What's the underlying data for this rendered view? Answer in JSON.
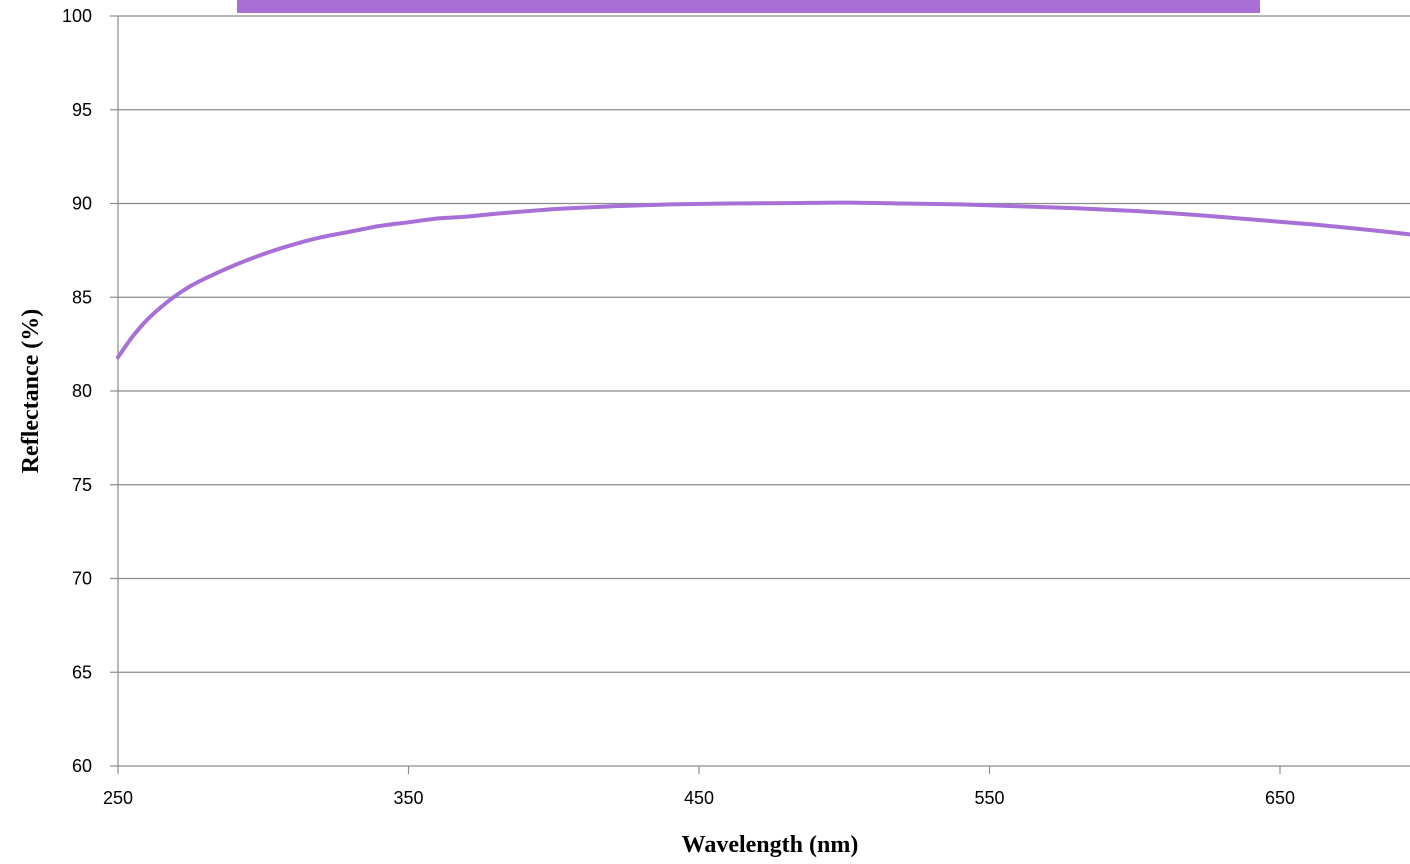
{
  "chart_data": {
    "type": "line",
    "title": "",
    "xlabel": "Wavelength (nm)",
    "ylabel": "Reflectance (%)",
    "xlim": [
      250,
      695
    ],
    "ylim": [
      60,
      100
    ],
    "x_ticks": [
      250,
      350,
      450,
      550,
      650
    ],
    "y_ticks": [
      60,
      65,
      70,
      75,
      80,
      85,
      90,
      95,
      100
    ],
    "x_tick_labels": [
      "250",
      "350",
      "450",
      "550",
      "650"
    ],
    "y_tick_labels": [
      "60",
      "65",
      "70",
      "75",
      "80",
      "85",
      "90",
      "95",
      "100"
    ],
    "grid": "horizontal",
    "legend": "top",
    "legend_color": "#a86fd6",
    "series": [
      {
        "color": "#a86fd6",
        "x": [
          250,
          255,
          260,
          265,
          270,
          275,
          280,
          290,
          300,
          310,
          320,
          330,
          340,
          350,
          360,
          370,
          380,
          400,
          420,
          440,
          460,
          480,
          500,
          520,
          540,
          560,
          580,
          600,
          620,
          640,
          660,
          680,
          695
        ],
        "y": [
          81.8,
          82.9,
          83.8,
          84.5,
          85.1,
          85.6,
          86.0,
          86.7,
          87.3,
          87.8,
          88.2,
          88.5,
          88.8,
          89.0,
          89.2,
          89.3,
          89.45,
          89.7,
          89.85,
          89.95,
          90.0,
          90.02,
          90.05,
          90.0,
          89.95,
          89.85,
          89.75,
          89.6,
          89.4,
          89.15,
          88.9,
          88.6,
          88.35
        ]
      }
    ]
  }
}
